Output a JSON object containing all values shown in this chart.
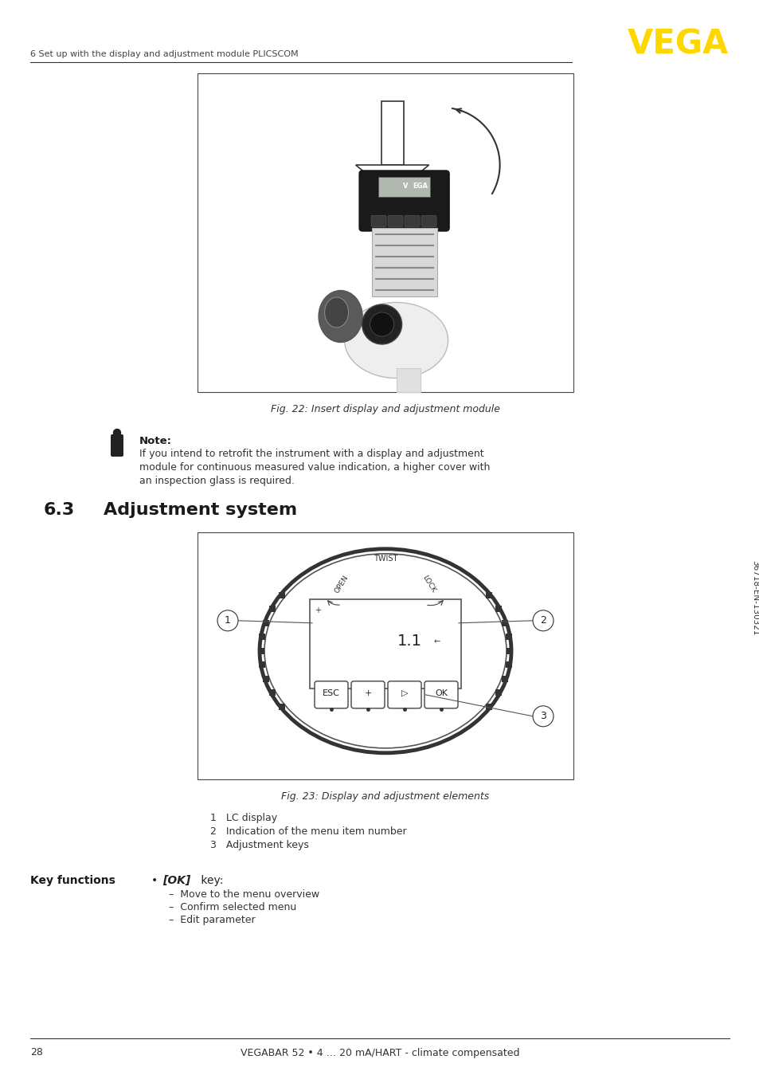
{
  "page_number": "28",
  "footer_text": "VEGABAR 52 • 4 … 20 mA/HART - climate compensated",
  "header_text": "6 Set up with the display and adjustment module PLICSCOM",
  "vega_color": "#FFD700",
  "fig22_caption": "Fig. 22: Insert display and adjustment module",
  "fig23_caption": "Fig. 23: Display and adjustment elements",
  "note_title": "Note:",
  "note_text": "If you intend to retrofit the instrument with a display and adjustment\nmodule for continuous measured value indication, a higher cover with\nan inspection glass is required.",
  "list_items": [
    "1   LC display",
    "2   Indication of the menu item number",
    "3   Adjustment keys"
  ],
  "key_functions_title": "Key functions",
  "key_functions_bullet": "•",
  "key_functions_ok": "[OK]",
  "key_functions_key": " key:",
  "key_functions_sub": [
    "–  Move to the menu overview",
    "–  Confirm selected menu",
    "–  Edit parameter"
  ],
  "sidebar_text": "36718-EN-130321",
  "bg_color": "#ffffff",
  "text_color": "#333333",
  "section_num": "6.3",
  "section_title": "Adjustment system"
}
